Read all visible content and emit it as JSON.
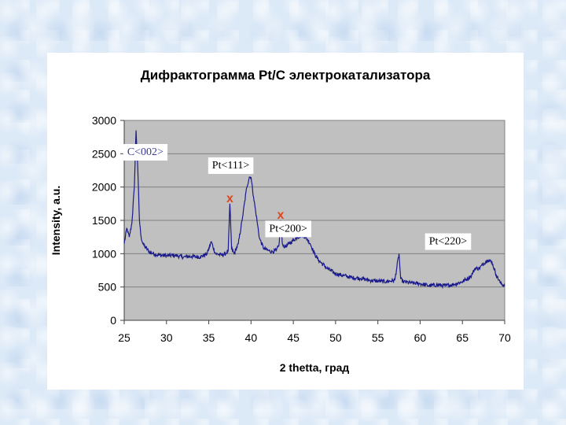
{
  "chart_data": {
    "type": "line",
    "title": "Дифрактограмма Pt/C электрокатализатора",
    "xlabel": "2 thetta, град",
    "ylabel": "Intensity, a.u.",
    "xlim": [
      25,
      70
    ],
    "ylim": [
      0,
      3000
    ],
    "x_ticks": [
      "25",
      "30",
      "35",
      "40",
      "45",
      "50",
      "55",
      "60",
      "65",
      "70"
    ],
    "y_ticks": [
      "0",
      "500",
      "1000",
      "1500",
      "2000",
      "2500",
      "3000"
    ],
    "grid": "horizontal",
    "plot_background": "#c0c0c0",
    "line_color": "#1a1a8c",
    "series": [
      {
        "x": [
          25.0,
          25.3,
          25.6,
          25.9,
          26.2,
          26.4,
          26.6,
          26.8,
          27.0,
          27.2,
          27.5,
          28.0,
          29.0,
          30.0,
          31.0,
          32.0,
          33.0,
          34.0,
          34.8,
          35.3,
          35.8,
          36.5,
          37.0,
          37.3,
          37.5,
          37.7,
          38.0,
          38.5,
          39.0,
          39.5,
          39.8,
          40.0,
          40.3,
          40.7,
          41.0,
          41.5,
          42.0,
          42.5,
          43.0,
          43.3,
          43.5,
          43.7,
          44.0,
          44.5,
          45.0,
          45.5,
          46.0,
          46.3,
          46.7,
          47.0,
          47.5,
          48.0,
          49.0,
          50.0,
          51.0,
          52.0,
          53.0,
          54.0,
          55.0,
          56.0,
          57.0,
          57.5,
          57.7,
          58.0,
          59.0,
          60.0,
          61.0,
          62.0,
          63.0,
          64.0,
          65.0,
          66.0,
          66.5,
          67.0,
          67.5,
          68.0,
          68.5,
          69.0,
          69.5,
          70.0
        ],
        "y": [
          1150,
          1380,
          1250,
          1450,
          2000,
          2850,
          2300,
          1500,
          1250,
          1150,
          1100,
          1020,
          980,
          970,
          975,
          950,
          960,
          950,
          1000,
          1180,
          1000,
          980,
          1000,
          1050,
          1750,
          1080,
          1000,
          1150,
          1550,
          2000,
          2150,
          2150,
          1850,
          1500,
          1230,
          1080,
          1050,
          1030,
          1050,
          1120,
          1500,
          1150,
          1100,
          1150,
          1200,
          1250,
          1270,
          1260,
          1210,
          1150,
          1000,
          900,
          780,
          700,
          670,
          640,
          630,
          600,
          590,
          580,
          600,
          1000,
          620,
          580,
          560,
          550,
          520,
          530,
          520,
          540,
          580,
          660,
          780,
          780,
          850,
          910,
          870,
          680,
          560,
          520
        ]
      }
    ],
    "annotations": [
      {
        "text": "C<002>",
        "x": 27.5,
        "y": 2480,
        "color": "#3c3c96"
      },
      {
        "text": "Pt<111>",
        "x": 37.6,
        "y": 2280,
        "color": "#000000"
      },
      {
        "text": "Pt<200>",
        "x": 44.4,
        "y": 1330,
        "color": "#000000"
      },
      {
        "text": "Pt<220>",
        "x": 63.3,
        "y": 1140,
        "color": "#000000"
      }
    ],
    "markers": [
      {
        "text": "x",
        "x": 37.5,
        "y": 1750,
        "color": "#e0451b"
      },
      {
        "text": "x",
        "x": 43.5,
        "y": 1500,
        "color": "#e0451b"
      }
    ]
  }
}
